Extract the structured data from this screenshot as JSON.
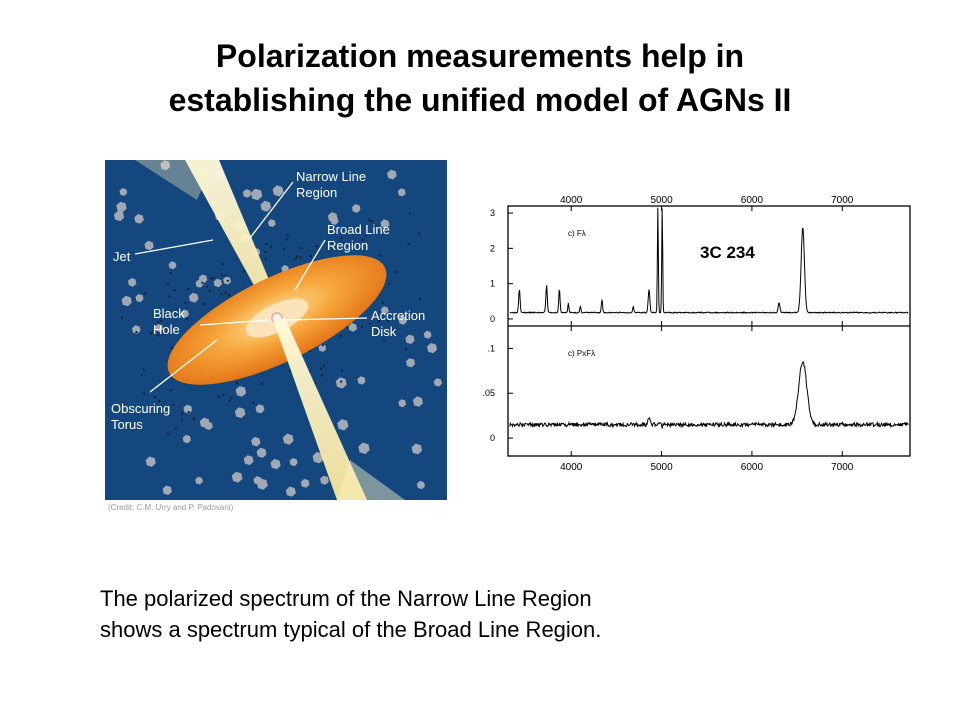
{
  "title": {
    "line1": "Polarization measurements help in",
    "line2": "establishing the unified model of AGNs II"
  },
  "diagram": {
    "labels": {
      "narrow_line_region": [
        "Narrow Line",
        "Region"
      ],
      "broad_line_region": [
        "Broad Line",
        "Region"
      ],
      "jet": "Jet",
      "black_hole": [
        "Black",
        "Hole"
      ],
      "accretion_disk": [
        "Accretion",
        "Disk"
      ],
      "obscuring_torus": [
        "Obscuring",
        "Torus"
      ]
    },
    "credit": "(Credit: C.M. Urry and P. Padovani)",
    "colors": {
      "background": "#14477e",
      "disk": "#f08a1c",
      "jet": "#fbf0b0",
      "clouds": "#a0a8b4"
    }
  },
  "caption": {
    "line1": "The polarized spectrum of the Narrow Line Region",
    "line2": "shows a spectrum typical of the Broad Line Region."
  },
  "chart_data": {
    "type": "line",
    "title": "3C 234",
    "x_ticks": [
      4000,
      5000,
      6000,
      7000
    ],
    "xlim": [
      3300,
      7750
    ],
    "panels": [
      {
        "name": "c) Fλ",
        "ylim": [
          -0.2,
          3.2
        ],
        "y_ticks": [
          {
            "value": 0,
            "label": "0"
          },
          {
            "value": 1,
            "label": "1"
          },
          {
            "value": 2,
            "label": "2"
          },
          {
            "value": 3,
            "label": "3"
          }
        ],
        "continuum": 0.18,
        "lines": [
          {
            "x": 3426,
            "y": 0.85,
            "w": 8
          },
          {
            "x": 3727,
            "y": 0.95,
            "w": 8
          },
          {
            "x": 3869,
            "y": 0.85,
            "w": 7
          },
          {
            "x": 3968,
            "y": 0.45,
            "w": 6
          },
          {
            "x": 4101,
            "y": 0.35,
            "w": 6
          },
          {
            "x": 4340,
            "y": 0.55,
            "w": 7
          },
          {
            "x": 4686,
            "y": 0.35,
            "w": 7
          },
          {
            "x": 4861,
            "y": 0.85,
            "w": 9
          },
          {
            "x": 4959,
            "y": 3.2,
            "w": 5
          },
          {
            "x": 5007,
            "y": 3.2,
            "w": 5
          },
          {
            "x": 6300,
            "y": 0.45,
            "w": 10
          },
          {
            "x": 6563,
            "y": 2.6,
            "w": 18
          }
        ]
      },
      {
        "name": "c) PxFλ",
        "ylim": [
          -0.02,
          0.125
        ],
        "y_ticks": [
          {
            "value": 0,
            "label": "0"
          },
          {
            "value": 0.05,
            "label": ".05"
          },
          {
            "value": 0.1,
            "label": ".1"
          }
        ],
        "continuum": 0.015,
        "lines": [
          {
            "x": 4861,
            "y": 0.022,
            "w": 12
          },
          {
            "x": 5007,
            "y": 0.012,
            "w": 5
          },
          {
            "x": 6563,
            "y": 0.085,
            "w": 45
          }
        ]
      }
    ]
  }
}
